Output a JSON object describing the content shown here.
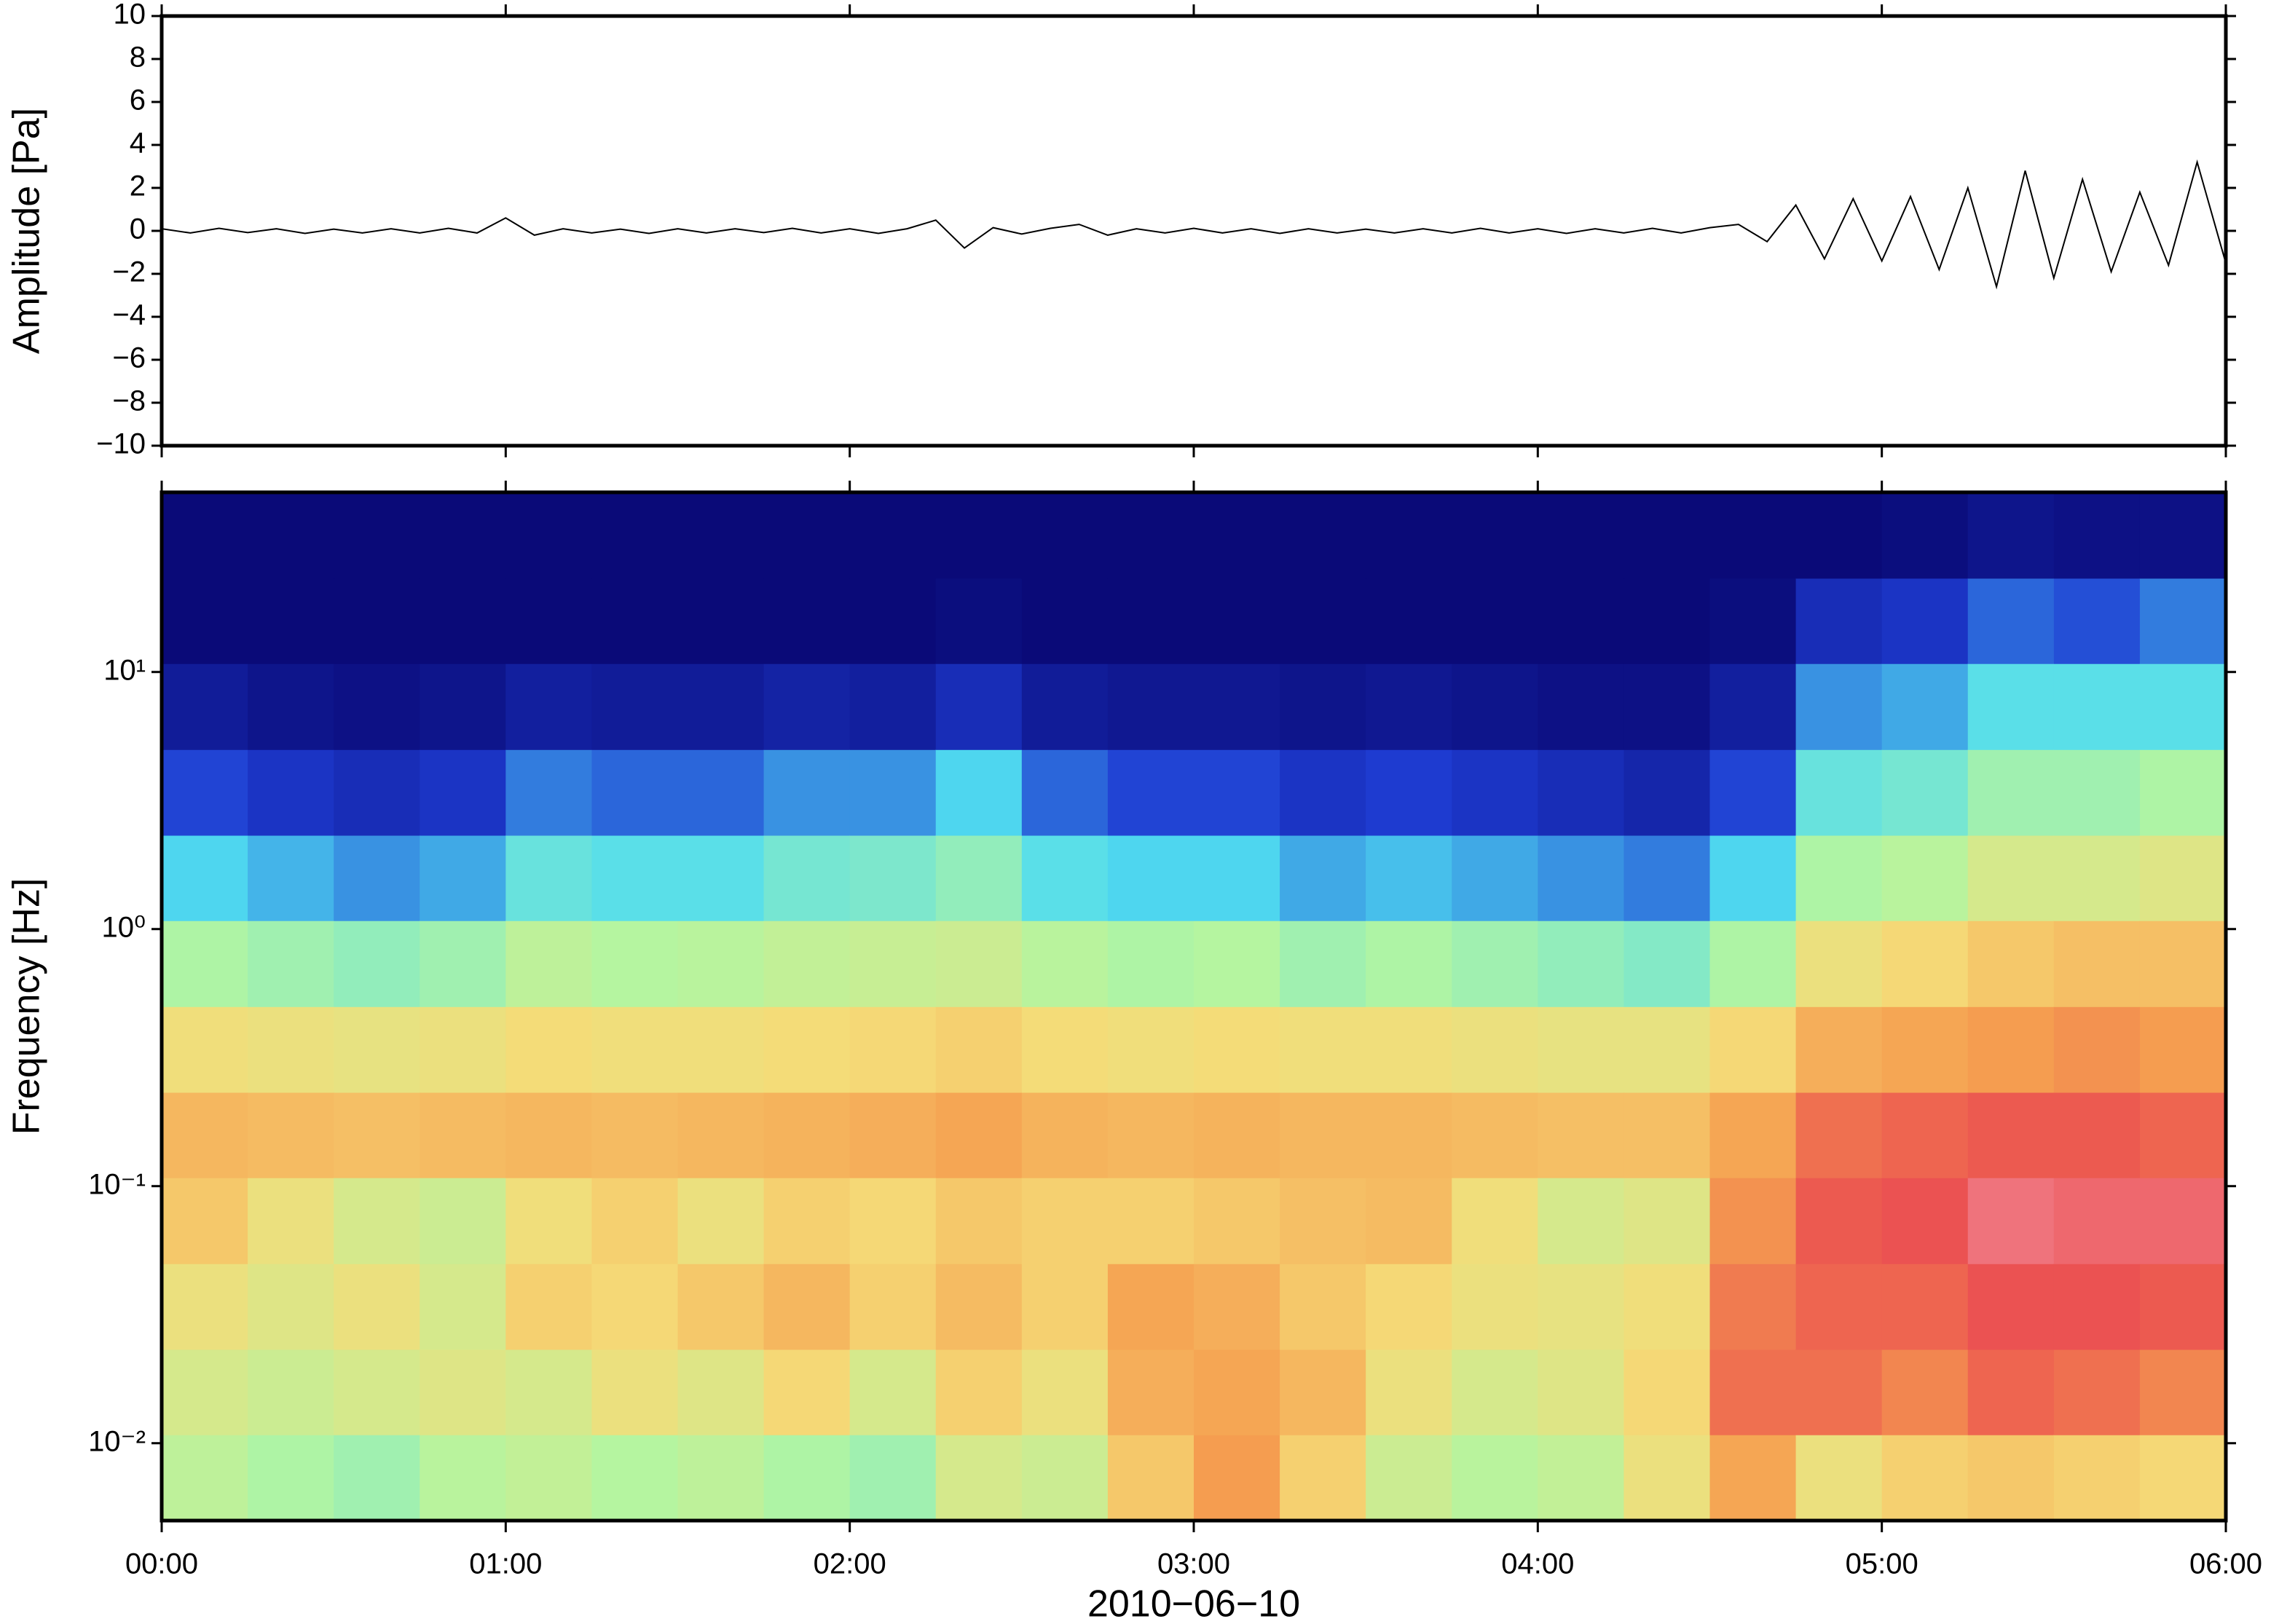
{
  "chart_data": [
    {
      "type": "line",
      "ylabel": "Amplitude [Pa]",
      "color": "#000000",
      "xlim": [
        "00:00",
        "06:00"
      ],
      "ylim": [
        -10,
        10
      ],
      "yticks": [
        {
          "value": -10,
          "label": "−10"
        },
        {
          "value": -8,
          "label": "−8"
        },
        {
          "value": -6,
          "label": "−6"
        },
        {
          "value": -4,
          "label": "−4"
        },
        {
          "value": -2,
          "label": "−2"
        },
        0,
        2,
        4,
        6,
        8,
        10
      ],
      "x": [
        "00:00",
        "00:05",
        "00:10",
        "00:15",
        "00:20",
        "00:25",
        "00:30",
        "00:35",
        "00:40",
        "00:45",
        "00:50",
        "00:55",
        "01:00",
        "01:05",
        "01:10",
        "01:15",
        "01:20",
        "01:25",
        "01:30",
        "01:35",
        "01:40",
        "01:45",
        "01:50",
        "01:55",
        "02:00",
        "02:05",
        "02:10",
        "02:15",
        "02:20",
        "02:25",
        "02:30",
        "02:35",
        "02:40",
        "02:45",
        "02:50",
        "02:55",
        "03:00",
        "03:05",
        "03:10",
        "03:15",
        "03:20",
        "03:25",
        "03:30",
        "03:35",
        "03:40",
        "03:45",
        "03:50",
        "03:55",
        "04:00",
        "04:05",
        "04:10",
        "04:15",
        "04:20",
        "04:25",
        "04:30",
        "04:35",
        "04:40",
        "04:45",
        "04:50",
        "04:55",
        "05:00",
        "05:05",
        "05:10",
        "05:15",
        "05:20",
        "05:25",
        "05:30",
        "05:35",
        "05:40",
        "05:45",
        "05:50",
        "05:55",
        "06:00"
      ],
      "values": [
        0.1,
        -0.1,
        0.12,
        -0.08,
        0.1,
        -0.12,
        0.08,
        -0.1,
        0.1,
        -0.1,
        0.12,
        -0.1,
        0.6,
        -0.2,
        0.1,
        -0.1,
        0.08,
        -0.12,
        0.1,
        -0.1,
        0.1,
        -0.08,
        0.12,
        -0.1,
        0.1,
        -0.12,
        0.1,
        0.5,
        -0.8,
        0.15,
        -0.15,
        0.12,
        0.3,
        -0.2,
        0.1,
        -0.1,
        0.12,
        -0.1,
        0.1,
        -0.12,
        0.1,
        -0.1,
        0.08,
        -0.1,
        0.1,
        -0.1,
        0.12,
        -0.1,
        0.1,
        -0.12,
        0.1,
        -0.1,
        0.12,
        -0.1,
        0.15,
        0.3,
        -0.5,
        1.2,
        -1.3,
        1.5,
        -1.4,
        1.6,
        -1.8,
        2.0,
        -2.6,
        2.8,
        -2.2,
        2.4,
        -1.9,
        1.8,
        -1.6,
        3.2,
        -1.5
      ]
    },
    {
      "type": "heatmap",
      "ylabel": "Frequency [Hz]",
      "xlabel": "2010−06−10",
      "log_y": true,
      "xlim": [
        "00:00",
        "06:00"
      ],
      "xticks": [
        "00:00",
        "01:00",
        "02:00",
        "03:00",
        "04:00",
        "05:00",
        "06:00"
      ],
      "ylim": [
        0.005,
        50
      ],
      "yticks": [
        {
          "value": 0.01,
          "label": "10⁻²"
        },
        {
          "value": 0.1,
          "label": "10⁻¹"
        },
        {
          "value": 1,
          "label": "10⁰"
        },
        {
          "value": 10,
          "label": "10¹"
        }
      ],
      "colorscale": [
        "#0a0a78",
        "#1e3cd2",
        "#50dcf0",
        "#b4f5a0",
        "#f5dc78",
        "#f5a050",
        "#eb5050",
        "#f5a0b4"
      ],
      "zlim": [
        0,
        1
      ],
      "x_edges": [
        "00:00",
        "00:15",
        "00:30",
        "00:45",
        "01:00",
        "01:15",
        "01:30",
        "01:45",
        "02:00",
        "02:15",
        "02:30",
        "02:45",
        "03:00",
        "03:15",
        "03:30",
        "03:45",
        "04:00",
        "04:15",
        "04:30",
        "04:45",
        "05:00",
        "05:15",
        "05:30",
        "05:45",
        "06:00"
      ],
      "y_edges": [
        0.005,
        0.0108,
        0.0232,
        0.05,
        0.108,
        0.232,
        0.5,
        1.08,
        2.32,
        5,
        10.8,
        23.2,
        50
      ],
      "z": [
        [
          0.45,
          0.5,
          0.55,
          0.62,
          0.66,
          0.56,
          0.42,
          0.28,
          0.15,
          0.05,
          0,
          0
        ],
        [
          0.42,
          0.48,
          0.52,
          0.55,
          0.65,
          0.55,
          0.4,
          0.25,
          0.12,
          0.03,
          0,
          0
        ],
        [
          0.4,
          0.5,
          0.55,
          0.5,
          0.64,
          0.54,
          0.38,
          0.22,
          0.1,
          0.02,
          0,
          0
        ],
        [
          0.44,
          0.52,
          0.5,
          0.48,
          0.65,
          0.55,
          0.4,
          0.24,
          0.12,
          0.03,
          0,
          0
        ],
        [
          0.46,
          0.5,
          0.6,
          0.56,
          0.66,
          0.57,
          0.45,
          0.32,
          0.2,
          0.06,
          0,
          0
        ],
        [
          0.43,
          0.55,
          0.58,
          0.6,
          0.65,
          0.56,
          0.43,
          0.3,
          0.18,
          0.05,
          0,
          0
        ],
        [
          0.45,
          0.52,
          0.62,
          0.55,
          0.66,
          0.56,
          0.44,
          0.3,
          0.18,
          0.05,
          0,
          0
        ],
        [
          0.42,
          0.58,
          0.66,
          0.6,
          0.67,
          0.57,
          0.46,
          0.34,
          0.22,
          0.07,
          0,
          0
        ],
        [
          0.4,
          0.5,
          0.6,
          0.58,
          0.68,
          0.58,
          0.47,
          0.35,
          0.22,
          0.06,
          0,
          0
        ],
        [
          0.5,
          0.6,
          0.65,
          0.62,
          0.7,
          0.6,
          0.48,
          0.38,
          0.28,
          0.1,
          0.01,
          0
        ],
        [
          0.48,
          0.55,
          0.6,
          0.6,
          0.67,
          0.57,
          0.44,
          0.3,
          0.18,
          0.05,
          0,
          0
        ],
        [
          0.62,
          0.68,
          0.7,
          0.6,
          0.66,
          0.56,
          0.42,
          0.28,
          0.15,
          0.04,
          0,
          0
        ],
        [
          0.72,
          0.7,
          0.68,
          0.62,
          0.67,
          0.57,
          0.43,
          0.28,
          0.15,
          0.04,
          0,
          0
        ],
        [
          0.6,
          0.66,
          0.62,
          0.64,
          0.66,
          0.56,
          0.4,
          0.24,
          0.12,
          0.03,
          0,
          0
        ],
        [
          0.48,
          0.55,
          0.58,
          0.65,
          0.66,
          0.56,
          0.42,
          0.26,
          0.14,
          0.04,
          0,
          0
        ],
        [
          0.44,
          0.5,
          0.55,
          0.56,
          0.65,
          0.55,
          0.4,
          0.24,
          0.12,
          0.03,
          0,
          0
        ],
        [
          0.46,
          0.52,
          0.54,
          0.5,
          0.64,
          0.54,
          0.38,
          0.22,
          0.1,
          0.02,
          0,
          0
        ],
        [
          0.55,
          0.58,
          0.56,
          0.52,
          0.64,
          0.54,
          0.36,
          0.2,
          0.08,
          0.02,
          0,
          0
        ],
        [
          0.7,
          0.8,
          0.78,
          0.74,
          0.7,
          0.58,
          0.42,
          0.28,
          0.15,
          0.06,
          0.01,
          0
        ],
        [
          0.55,
          0.8,
          0.82,
          0.84,
          0.8,
          0.68,
          0.55,
          0.42,
          0.32,
          0.22,
          0.1,
          0
        ],
        [
          0.6,
          0.76,
          0.82,
          0.86,
          0.82,
          0.7,
          0.58,
          0.44,
          0.34,
          0.24,
          0.12,
          0.01
        ],
        [
          0.62,
          0.82,
          0.86,
          0.92,
          0.84,
          0.72,
          0.62,
          0.5,
          0.4,
          0.3,
          0.18,
          0.03
        ],
        [
          0.6,
          0.8,
          0.86,
          0.9,
          0.84,
          0.74,
          0.64,
          0.5,
          0.4,
          0.3,
          0.16,
          0.02
        ],
        [
          0.58,
          0.76,
          0.84,
          0.9,
          0.82,
          0.72,
          0.64,
          0.52,
          0.42,
          0.3,
          0.2,
          0.02
        ]
      ]
    }
  ]
}
